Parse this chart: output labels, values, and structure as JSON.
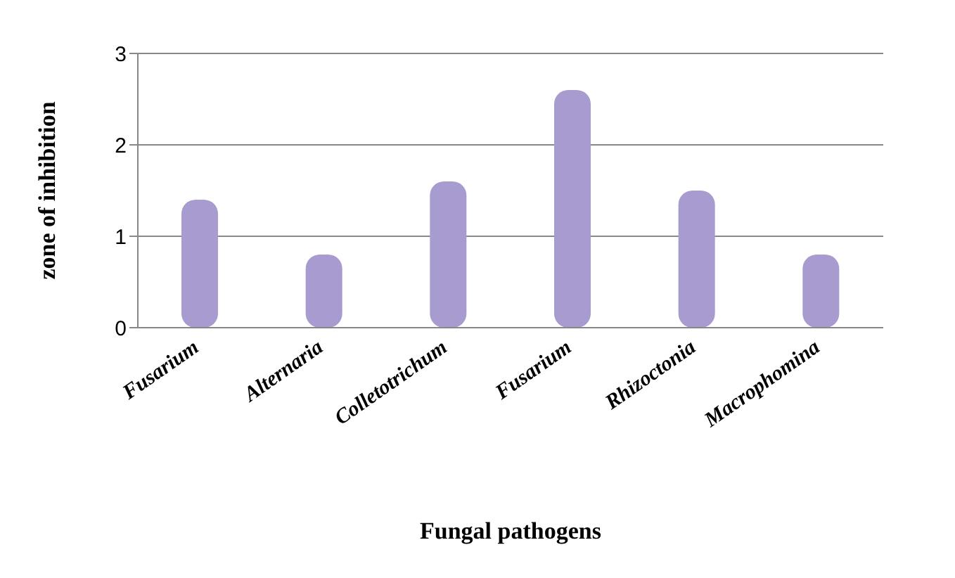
{
  "chart_data": {
    "type": "bar",
    "xlabel": "Fungal pathogens",
    "ylabel": "zone of inhibition",
    "categories": [
      "Fusarium",
      "Alternaria",
      "Colletotrichum",
      "Fusarium",
      "Rhizoctonia",
      "Macrophomina"
    ],
    "values": [
      1.4,
      0.8,
      1.6,
      2.6,
      1.5,
      0.8
    ],
    "color": "#a79bd0",
    "ylim": [
      0,
      3
    ],
    "yticks": [
      0,
      1,
      2,
      3
    ],
    "grid": "y"
  }
}
